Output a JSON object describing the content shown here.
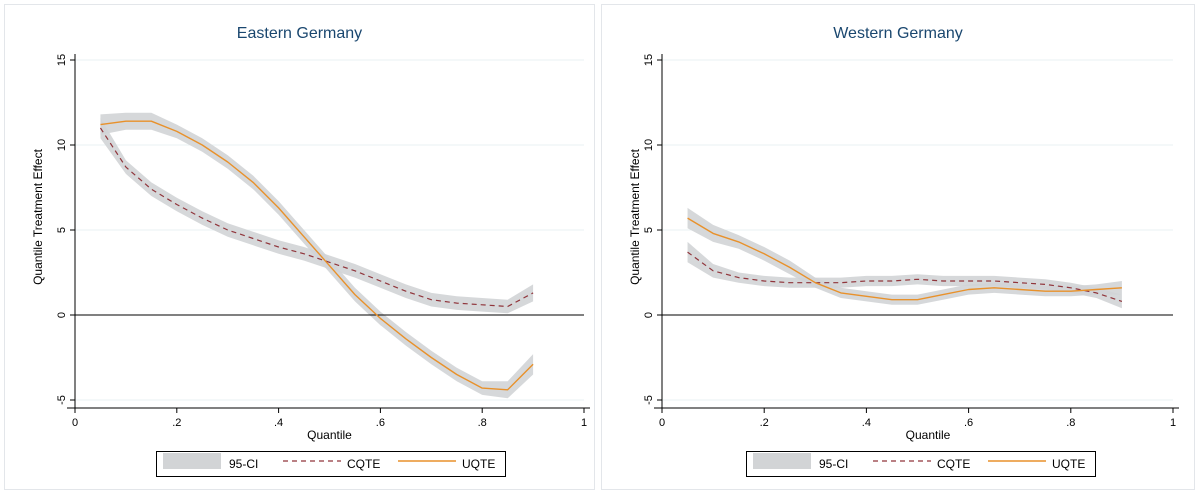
{
  "legend": {
    "ci": "95-CI",
    "cqte": "CQTE",
    "uqte": "UQTE"
  },
  "colors": {
    "ci_band": "#d2d4d6",
    "cqte": "#90353b",
    "uqte": "#e8912b",
    "zero_line": "#000000",
    "grid": "#eaf2f3",
    "title": "#1a476f"
  },
  "chart_data": [
    {
      "type": "line",
      "title": "Eastern Germany",
      "xlabel": "Quantile",
      "ylabel": "Quantile Treatment Effect",
      "xlim": [
        0,
        1
      ],
      "ylim": [
        -5,
        15
      ],
      "x_ticks": [
        0,
        0.2,
        0.4,
        0.6,
        0.8,
        1
      ],
      "x_tick_labels": [
        "0",
        ".2",
        ".4",
        ".6",
        ".8",
        "1"
      ],
      "y_ticks": [
        -5,
        0,
        5,
        10,
        15
      ],
      "y_tick_labels": [
        "-5",
        "0",
        "5",
        "10",
        "15"
      ],
      "grid": true,
      "reference_line_y": 0,
      "legend_position": "bottom",
      "x": [
        0.05,
        0.1,
        0.15,
        0.2,
        0.25,
        0.3,
        0.35,
        0.4,
        0.45,
        0.5,
        0.55,
        0.6,
        0.65,
        0.7,
        0.75,
        0.8,
        0.85,
        0.9
      ],
      "series": [
        {
          "name": "CQTE",
          "values": [
            11.0,
            8.7,
            7.4,
            6.5,
            5.7,
            5.0,
            4.5,
            4.0,
            3.6,
            3.1,
            2.6,
            2.0,
            1.4,
            0.9,
            0.7,
            0.6,
            0.5,
            1.3
          ],
          "ci_lower": [
            10.4,
            8.3,
            7.0,
            6.1,
            5.3,
            4.6,
            4.1,
            3.6,
            3.2,
            2.7,
            2.2,
            1.6,
            1.0,
            0.5,
            0.3,
            0.2,
            0.1,
            0.8
          ],
          "ci_upper": [
            11.6,
            9.1,
            7.8,
            6.9,
            6.1,
            5.4,
            4.9,
            4.4,
            4.0,
            3.5,
            3.0,
            2.4,
            1.8,
            1.3,
            1.1,
            1.0,
            0.9,
            1.8
          ]
        },
        {
          "name": "UQTE",
          "values": [
            11.2,
            11.4,
            11.4,
            10.8,
            10.0,
            9.0,
            7.8,
            6.3,
            4.6,
            2.9,
            1.2,
            -0.2,
            -1.4,
            -2.5,
            -3.5,
            -4.3,
            -4.4,
            -2.9
          ],
          "ci_lower": [
            10.6,
            10.9,
            10.9,
            10.4,
            9.6,
            8.6,
            7.4,
            5.9,
            4.2,
            2.5,
            0.8,
            -0.6,
            -1.8,
            -2.9,
            -3.9,
            -4.7,
            -4.9,
            -3.5
          ],
          "ci_upper": [
            11.8,
            11.9,
            11.9,
            11.2,
            10.4,
            9.4,
            8.2,
            6.7,
            5.0,
            3.3,
            1.6,
            0.2,
            -1.0,
            -2.1,
            -3.1,
            -3.9,
            -3.9,
            -2.3
          ]
        }
      ]
    },
    {
      "type": "line",
      "title": "Western Germany",
      "xlabel": "Quantile",
      "ylabel": "Quantile Treatment Effect",
      "xlim": [
        0,
        1
      ],
      "ylim": [
        -5,
        15
      ],
      "x_ticks": [
        0,
        0.2,
        0.4,
        0.6,
        0.8,
        1
      ],
      "x_tick_labels": [
        "0",
        ".2",
        ".4",
        ".6",
        ".8",
        "1"
      ],
      "y_ticks": [
        -5,
        0,
        5,
        10,
        15
      ],
      "y_tick_labels": [
        "-5",
        "0",
        "5",
        "10",
        "15"
      ],
      "grid": true,
      "reference_line_y": 0,
      "legend_position": "bottom",
      "x": [
        0.05,
        0.1,
        0.15,
        0.2,
        0.25,
        0.3,
        0.35,
        0.4,
        0.45,
        0.5,
        0.55,
        0.6,
        0.65,
        0.7,
        0.75,
        0.8,
        0.85,
        0.9
      ],
      "series": [
        {
          "name": "CQTE",
          "values": [
            3.7,
            2.6,
            2.2,
            2.0,
            1.9,
            1.9,
            1.9,
            2.0,
            2.0,
            2.1,
            2.0,
            2.0,
            2.0,
            1.9,
            1.8,
            1.6,
            1.3,
            0.8
          ],
          "ci_lower": [
            3.1,
            2.2,
            1.9,
            1.7,
            1.6,
            1.6,
            1.6,
            1.7,
            1.7,
            1.8,
            1.7,
            1.7,
            1.7,
            1.6,
            1.5,
            1.3,
            1.0,
            0.4
          ],
          "ci_upper": [
            4.3,
            3.0,
            2.5,
            2.3,
            2.2,
            2.2,
            2.2,
            2.3,
            2.3,
            2.4,
            2.3,
            2.3,
            2.3,
            2.2,
            2.1,
            1.9,
            1.6,
            1.2
          ]
        },
        {
          "name": "UQTE",
          "values": [
            5.7,
            4.8,
            4.3,
            3.6,
            2.8,
            1.9,
            1.3,
            1.1,
            0.9,
            0.9,
            1.2,
            1.5,
            1.6,
            1.5,
            1.4,
            1.4,
            1.5,
            1.6
          ],
          "ci_lower": [
            5.1,
            4.3,
            3.9,
            3.2,
            2.4,
            1.6,
            1.0,
            0.8,
            0.6,
            0.6,
            0.9,
            1.2,
            1.3,
            1.2,
            1.1,
            1.1,
            1.2,
            1.2
          ],
          "ci_upper": [
            6.3,
            5.3,
            4.7,
            4.0,
            3.2,
            2.2,
            1.6,
            1.4,
            1.2,
            1.2,
            1.5,
            1.8,
            1.9,
            1.8,
            1.7,
            1.7,
            1.8,
            2.0
          ]
        }
      ]
    }
  ]
}
